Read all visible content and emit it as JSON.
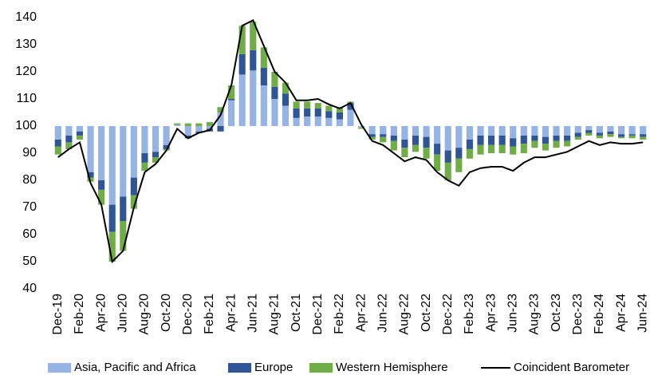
{
  "chart_data": {
    "type": "bar",
    "categories": [
      "Dec-19",
      null,
      "Feb-20",
      null,
      "Apr-20",
      null,
      "Jun-20",
      null,
      "Aug-20",
      null,
      "Oct-20",
      null,
      "Dec-20",
      null,
      "Feb-21",
      null,
      "Apr-21",
      null,
      "Jun-21",
      null,
      "Aug-21",
      null,
      "Oct-21",
      null,
      "Dec-21",
      null,
      "Feb-22",
      null,
      "Apr-22",
      null,
      "Jun-22",
      null,
      "Aug-22",
      null,
      "Oct-22",
      null,
      "Dec-22",
      null,
      "Feb-23",
      null,
      "Apr-23",
      null,
      "Jun-23",
      null,
      "Aug-23",
      null,
      "Oct-23",
      null,
      "Dec-23",
      null,
      "Feb-24",
      null,
      "Apr-24",
      null,
      "Jun-24"
    ],
    "bar_baseline": 100,
    "series": [
      {
        "name": "Asia, Pacific and Africa",
        "color": "#95b3e3",
        "values": [
          -5,
          -3.5,
          -2,
          -17,
          -20,
          -29,
          -26,
          -19,
          -10,
          -9.5,
          -7,
          0.5,
          -3.5,
          -2,
          -1,
          5,
          9.5,
          19,
          20.5,
          15,
          10,
          7.5,
          3,
          3.5,
          3.5,
          3,
          2.5,
          6,
          -0.5,
          -3,
          -3,
          -3.5,
          -5,
          -3.5,
          -4,
          -6.5,
          -9,
          -8,
          -5,
          -3.5,
          -3.5,
          -3.5,
          -4.5,
          -3.5,
          -3.5,
          -4,
          -3.5,
          -3.5,
          -2.5,
          -1.5,
          -2.5,
          -2,
          -3,
          -3,
          -3
        ]
      },
      {
        "name": "Europe",
        "color": "#2f5597",
        "values": [
          -2.5,
          -2.5,
          -1.5,
          -2,
          -3.5,
          -10,
          -9,
          -6.5,
          -3.5,
          -2,
          -1.5,
          0,
          -1,
          -0.5,
          -1,
          -2,
          0.5,
          7.5,
          7.5,
          6.5,
          4.5,
          4.5,
          3.5,
          3,
          3,
          2.5,
          2.5,
          2.5,
          0,
          -1,
          -1,
          -2,
          -3,
          -3.5,
          -4,
          -4,
          -4.5,
          -4,
          -3.5,
          -3.5,
          -3.5,
          -3.5,
          -3,
          -3,
          -2,
          -2.5,
          -2,
          -2,
          -1.5,
          -1,
          -1,
          -1,
          -1,
          -0.5,
          -1
        ]
      },
      {
        "name": "Western Hemisphere",
        "color": "#70ad47",
        "values": [
          -3,
          -2.5,
          -1.5,
          -1.5,
          -5.5,
          -11,
          -11,
          -5,
          -3,
          -2,
          -0.5,
          0.5,
          1,
          1,
          1.5,
          2,
          5,
          10.5,
          10.5,
          7.5,
          5.5,
          4,
          2.5,
          2.5,
          2,
          2,
          2,
          0.5,
          -0.5,
          -1,
          -2,
          -3.5,
          -3.5,
          -2.5,
          -4,
          -6,
          -6.5,
          -5,
          -3.5,
          -3.5,
          -3,
          -3,
          -3,
          -3.5,
          -2.5,
          -2.5,
          -2.5,
          -2,
          -1,
          -1,
          -1,
          -1,
          -0.5,
          -1,
          -1
        ]
      },
      {
        "name": "Coincident Barometer",
        "type": "line",
        "color": "#000000",
        "values": [
          88.5,
          91.5,
          94,
          79,
          71,
          50,
          54,
          70,
          83,
          86,
          91,
          99,
          95.5,
          97.5,
          98.5,
          104,
          115,
          137,
          139,
          129.5,
          120,
          116,
          109.5,
          109.5,
          110,
          108,
          106.5,
          108.5,
          100.5,
          94.5,
          93,
          90,
          87,
          88.5,
          87.5,
          83,
          80,
          78,
          83,
          84.5,
          85,
          85,
          83.5,
          86.5,
          88.5,
          88.5,
          89.5,
          90.5,
          92.5,
          94.5,
          93,
          94,
          93.5,
          93.5,
          94
        ]
      }
    ],
    "ylim": [
      40,
      140
    ],
    "yticks": [
      40,
      50,
      60,
      70,
      80,
      90,
      100,
      110,
      120,
      130,
      140
    ],
    "grid": false
  }
}
